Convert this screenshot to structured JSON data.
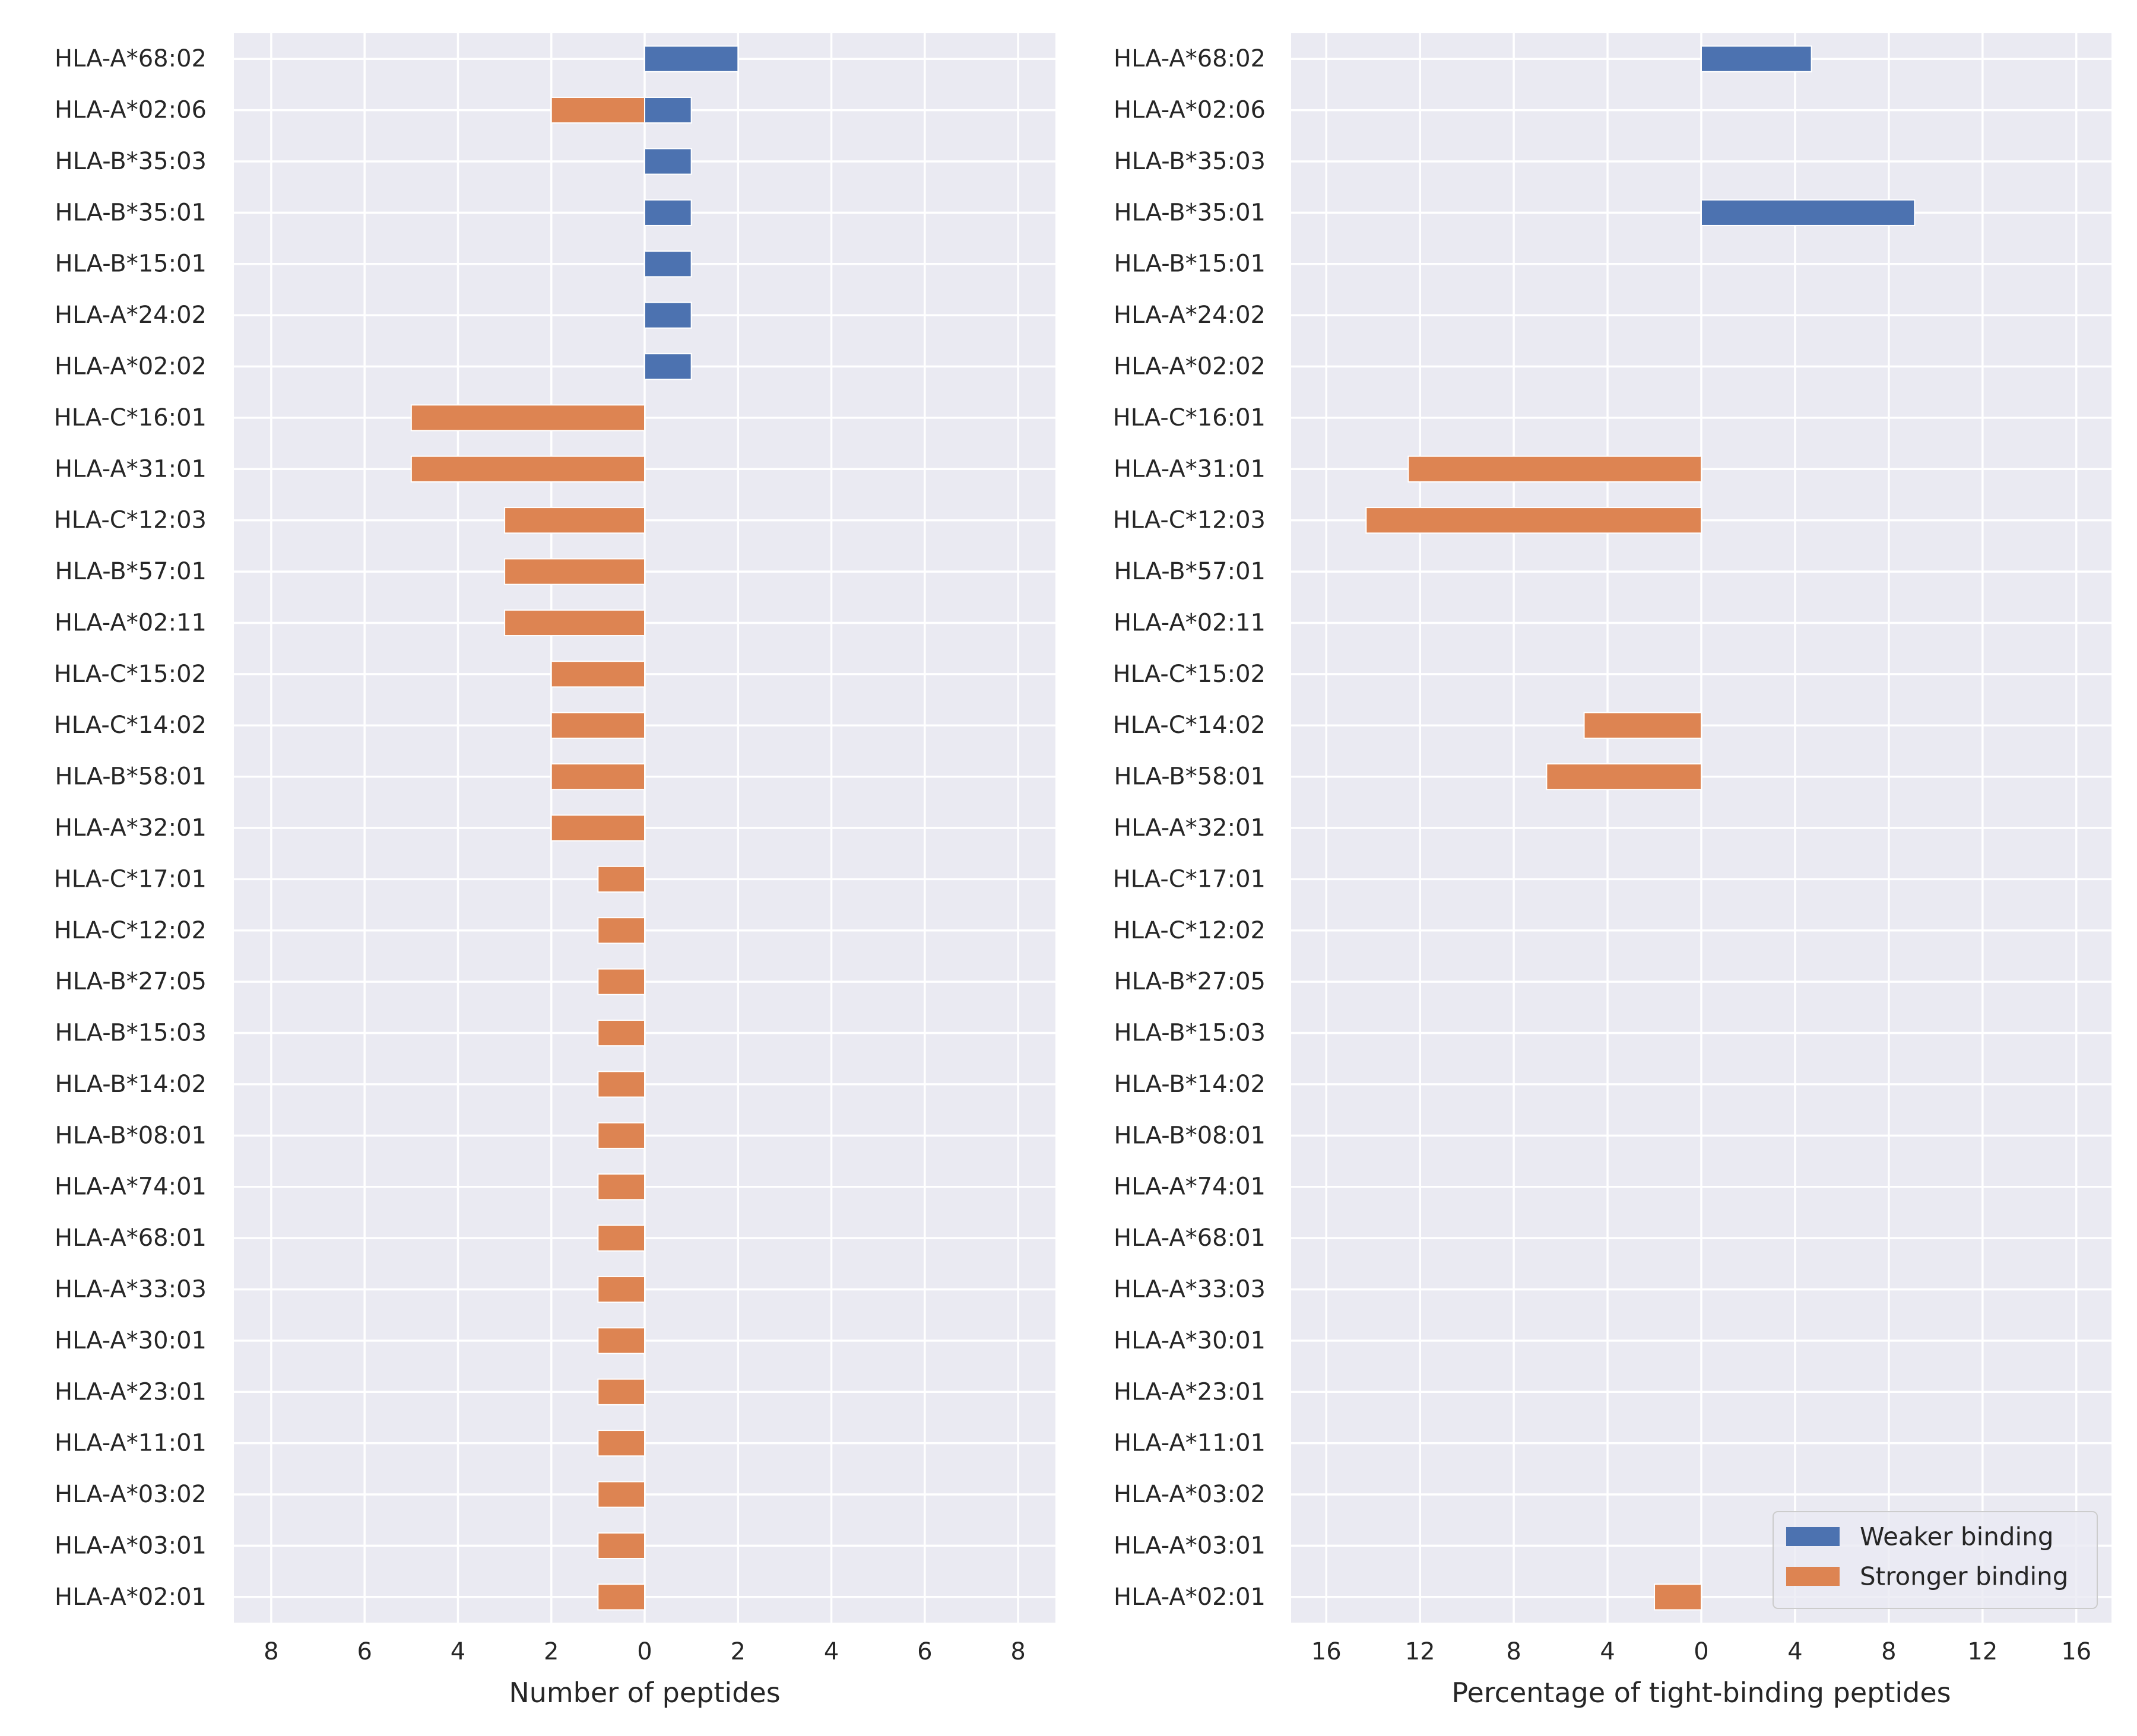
{
  "chart_data": [
    {
      "type": "bar",
      "orientation": "horizontal-diverging",
      "xlabel": "Number of peptides",
      "ylabel": "",
      "xlim": [
        -8.8,
        8.8
      ],
      "xticks": [
        -8,
        -6,
        -4,
        -2,
        0,
        2,
        4,
        6,
        8
      ],
      "xtick_labels": [
        "8",
        "6",
        "4",
        "2",
        "0",
        "2",
        "4",
        "6",
        "8"
      ],
      "grid": true,
      "categories": [
        "HLA-A*68:02",
        "HLA-A*02:06",
        "HLA-B*35:03",
        "HLA-B*35:01",
        "HLA-B*15:01",
        "HLA-A*24:02",
        "HLA-A*02:02",
        "HLA-C*16:01",
        "HLA-A*31:01",
        "HLA-C*12:03",
        "HLA-B*57:01",
        "HLA-A*02:11",
        "HLA-C*15:02",
        "HLA-C*14:02",
        "HLA-B*58:01",
        "HLA-A*32:01",
        "HLA-C*17:01",
        "HLA-C*12:02",
        "HLA-B*27:05",
        "HLA-B*15:03",
        "HLA-B*14:02",
        "HLA-B*08:01",
        "HLA-A*74:01",
        "HLA-A*68:01",
        "HLA-A*33:03",
        "HLA-A*30:01",
        "HLA-A*23:01",
        "HLA-A*11:01",
        "HLA-A*03:02",
        "HLA-A*03:01",
        "HLA-A*02:01"
      ],
      "series": [
        {
          "name": "Weaker binding",
          "color": "#4c72b0",
          "direction": "right",
          "values": [
            2,
            1,
            1,
            1,
            1,
            1,
            1,
            0,
            0,
            0,
            0,
            0,
            0,
            0,
            0,
            0,
            0,
            0,
            0,
            0,
            0,
            0,
            0,
            0,
            0,
            0,
            0,
            0,
            0,
            0,
            0
          ]
        },
        {
          "name": "Stronger binding",
          "color": "#dd8452",
          "direction": "left",
          "values": [
            0,
            2,
            0,
            0,
            0,
            0,
            0,
            5,
            5,
            3,
            3,
            3,
            2,
            2,
            2,
            2,
            1,
            1,
            1,
            1,
            1,
            1,
            1,
            1,
            1,
            1,
            1,
            1,
            1,
            1,
            1
          ]
        }
      ]
    },
    {
      "type": "bar",
      "orientation": "horizontal-diverging",
      "xlabel": "Percentage of tight-binding peptides",
      "ylabel": "",
      "xlim": [
        -17.5,
        17.5
      ],
      "xticks": [
        -16,
        -12,
        -8,
        -4,
        0,
        4,
        8,
        12,
        16
      ],
      "xtick_labels": [
        "16",
        "12",
        "8",
        "4",
        "0",
        "4",
        "8",
        "12",
        "16"
      ],
      "grid": true,
      "legend": "lower-right",
      "categories": [
        "HLA-A*68:02",
        "HLA-A*02:06",
        "HLA-B*35:03",
        "HLA-B*35:01",
        "HLA-B*15:01",
        "HLA-A*24:02",
        "HLA-A*02:02",
        "HLA-C*16:01",
        "HLA-A*31:01",
        "HLA-C*12:03",
        "HLA-B*57:01",
        "HLA-A*02:11",
        "HLA-C*15:02",
        "HLA-C*14:02",
        "HLA-B*58:01",
        "HLA-A*32:01",
        "HLA-C*17:01",
        "HLA-C*12:02",
        "HLA-B*27:05",
        "HLA-B*15:03",
        "HLA-B*14:02",
        "HLA-B*08:01",
        "HLA-A*74:01",
        "HLA-A*68:01",
        "HLA-A*33:03",
        "HLA-A*30:01",
        "HLA-A*23:01",
        "HLA-A*11:01",
        "HLA-A*03:02",
        "HLA-A*03:01",
        "HLA-A*02:01"
      ],
      "series": [
        {
          "name": "Weaker binding",
          "color": "#4c72b0",
          "direction": "right",
          "values": [
            4.7,
            0,
            0,
            9.1,
            0,
            0,
            0,
            0,
            0,
            0,
            0,
            0,
            0,
            0,
            0,
            0,
            0,
            0,
            0,
            0,
            0,
            0,
            0,
            0,
            0,
            0,
            0,
            0,
            0,
            0,
            0
          ]
        },
        {
          "name": "Stronger binding",
          "color": "#dd8452",
          "direction": "left",
          "values": [
            0,
            0,
            0,
            0,
            0,
            0,
            0,
            0,
            12.5,
            14.3,
            0,
            0,
            0,
            5.0,
            6.6,
            0,
            0,
            0,
            0,
            0,
            0,
            0,
            0,
            0,
            0,
            0,
            0,
            0,
            0,
            0,
            2.0
          ]
        }
      ]
    }
  ]
}
